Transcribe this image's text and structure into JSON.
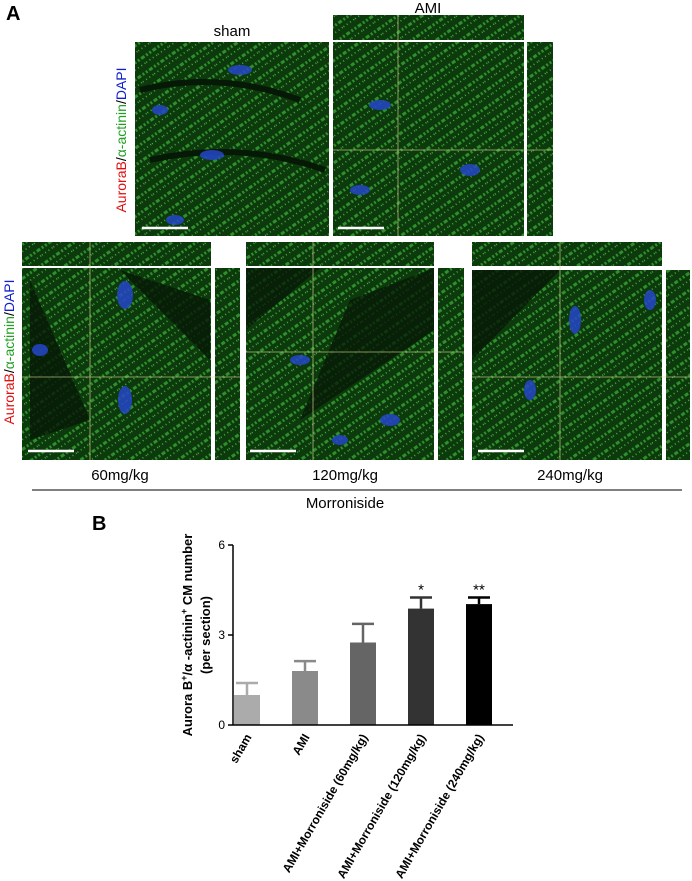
{
  "panel_a": {
    "label": "A",
    "stain_label": [
      "AuroraB",
      "/",
      "α-actinin",
      "/",
      "DAPI"
    ],
    "top_titles": [
      "sham",
      "AMI"
    ],
    "bottom_titles": [
      "60mg/kg",
      "120mg/kg",
      "240mg/kg"
    ],
    "group_label": "Morroniside"
  },
  "panel_b": {
    "label": "B"
  },
  "chart_data": {
    "type": "bar",
    "y_label": [
      "Aurora B",
      "+",
      "/α -actinin",
      "+",
      " CM number"
    ],
    "y_label_line2": "(per section)",
    "categories": [
      "sham",
      "AMI",
      "AMI+Morroniside (60mg/kg)",
      "AMI+Morroniside (120mg/kg)",
      "AMI+Morroniside (240mg/kg)"
    ],
    "values": [
      1.0,
      1.8,
      2.75,
      3.88,
      4.03
    ],
    "errors": [
      0.4,
      0.33,
      0.62,
      0.37,
      0.22
    ],
    "colors": [
      "#ababab",
      "#8a8a8a",
      "#656565",
      "#333333",
      "#000000"
    ],
    "annotations": [
      null,
      null,
      null,
      "*",
      "**"
    ],
    "ylim": [
      0,
      6
    ],
    "yticks": [
      0,
      3,
      6
    ]
  }
}
